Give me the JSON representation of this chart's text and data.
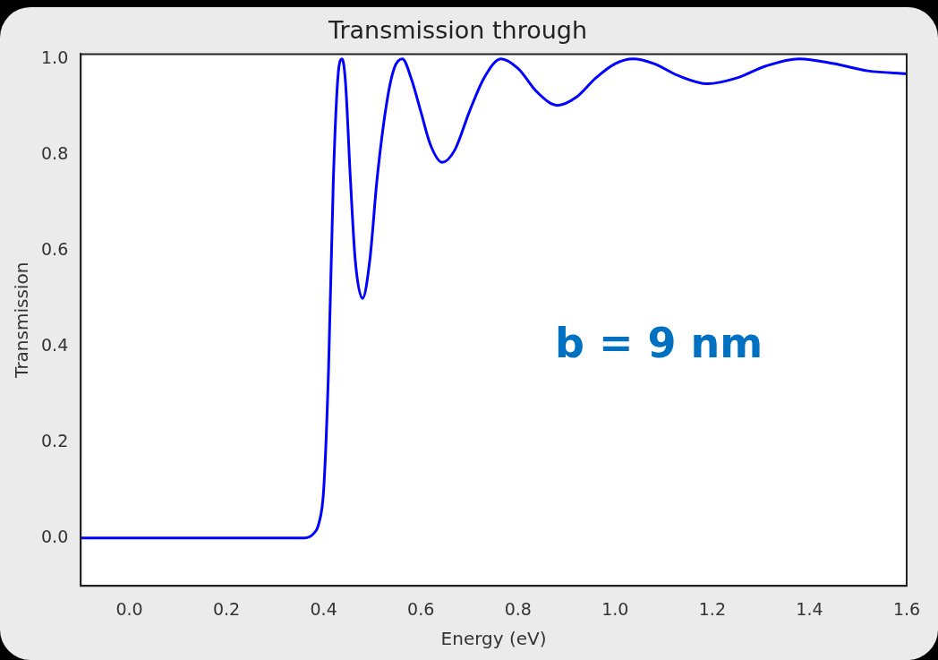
{
  "chart_data": {
    "type": "line",
    "title": "Transmission through",
    "xlabel": "Energy (eV)",
    "ylabel": "Transmission",
    "annotations": [
      "b = 9 nm"
    ],
    "x": [
      -0.1,
      0.0,
      0.2,
      0.36,
      0.38,
      0.39,
      0.4,
      0.41,
      0.42,
      0.43,
      0.438,
      0.445,
      0.455,
      0.465,
      0.48,
      0.495,
      0.51,
      0.53,
      0.545,
      0.562,
      0.58,
      0.6,
      0.62,
      0.644,
      0.67,
      0.7,
      0.73,
      0.765,
      0.8,
      0.84,
      0.881,
      0.92,
      0.96,
      1.0,
      1.037,
      1.08,
      1.13,
      1.19,
      1.25,
      1.31,
      1.379,
      1.45,
      1.52,
      1.6
    ],
    "series": [
      {
        "color": "#0000ff",
        "values": [
          0.0,
          0.0,
          0.0,
          0.0,
          0.01,
          0.03,
          0.1,
          0.35,
          0.75,
          0.97,
          1.0,
          0.95,
          0.75,
          0.58,
          0.5,
          0.58,
          0.75,
          0.91,
          0.98,
          1.0,
          0.96,
          0.89,
          0.82,
          0.784,
          0.81,
          0.89,
          0.96,
          1.0,
          0.98,
          0.93,
          0.903,
          0.92,
          0.96,
          0.99,
          1.0,
          0.99,
          0.965,
          0.948,
          0.96,
          0.985,
          1.0,
          0.99,
          0.975,
          0.969
        ]
      }
    ],
    "xlim": [
      -0.1,
      1.6
    ],
    "xticks": [
      {
        "value": 0,
        "label": "0.0"
      },
      0.2,
      0.4,
      0.6,
      0.8,
      {
        "value": 1,
        "label": "1.0"
      },
      1.2,
      1.4,
      1.6
    ],
    "ylim": [
      -0.1,
      1.01
    ],
    "yticks": [
      {
        "value": 0,
        "label": "0.0"
      },
      0.2,
      0.4,
      0.6,
      0.8,
      {
        "value": 1,
        "label": "1.0"
      }
    ],
    "grid": false,
    "legend": false,
    "marker": "none",
    "line_style": "solid"
  }
}
